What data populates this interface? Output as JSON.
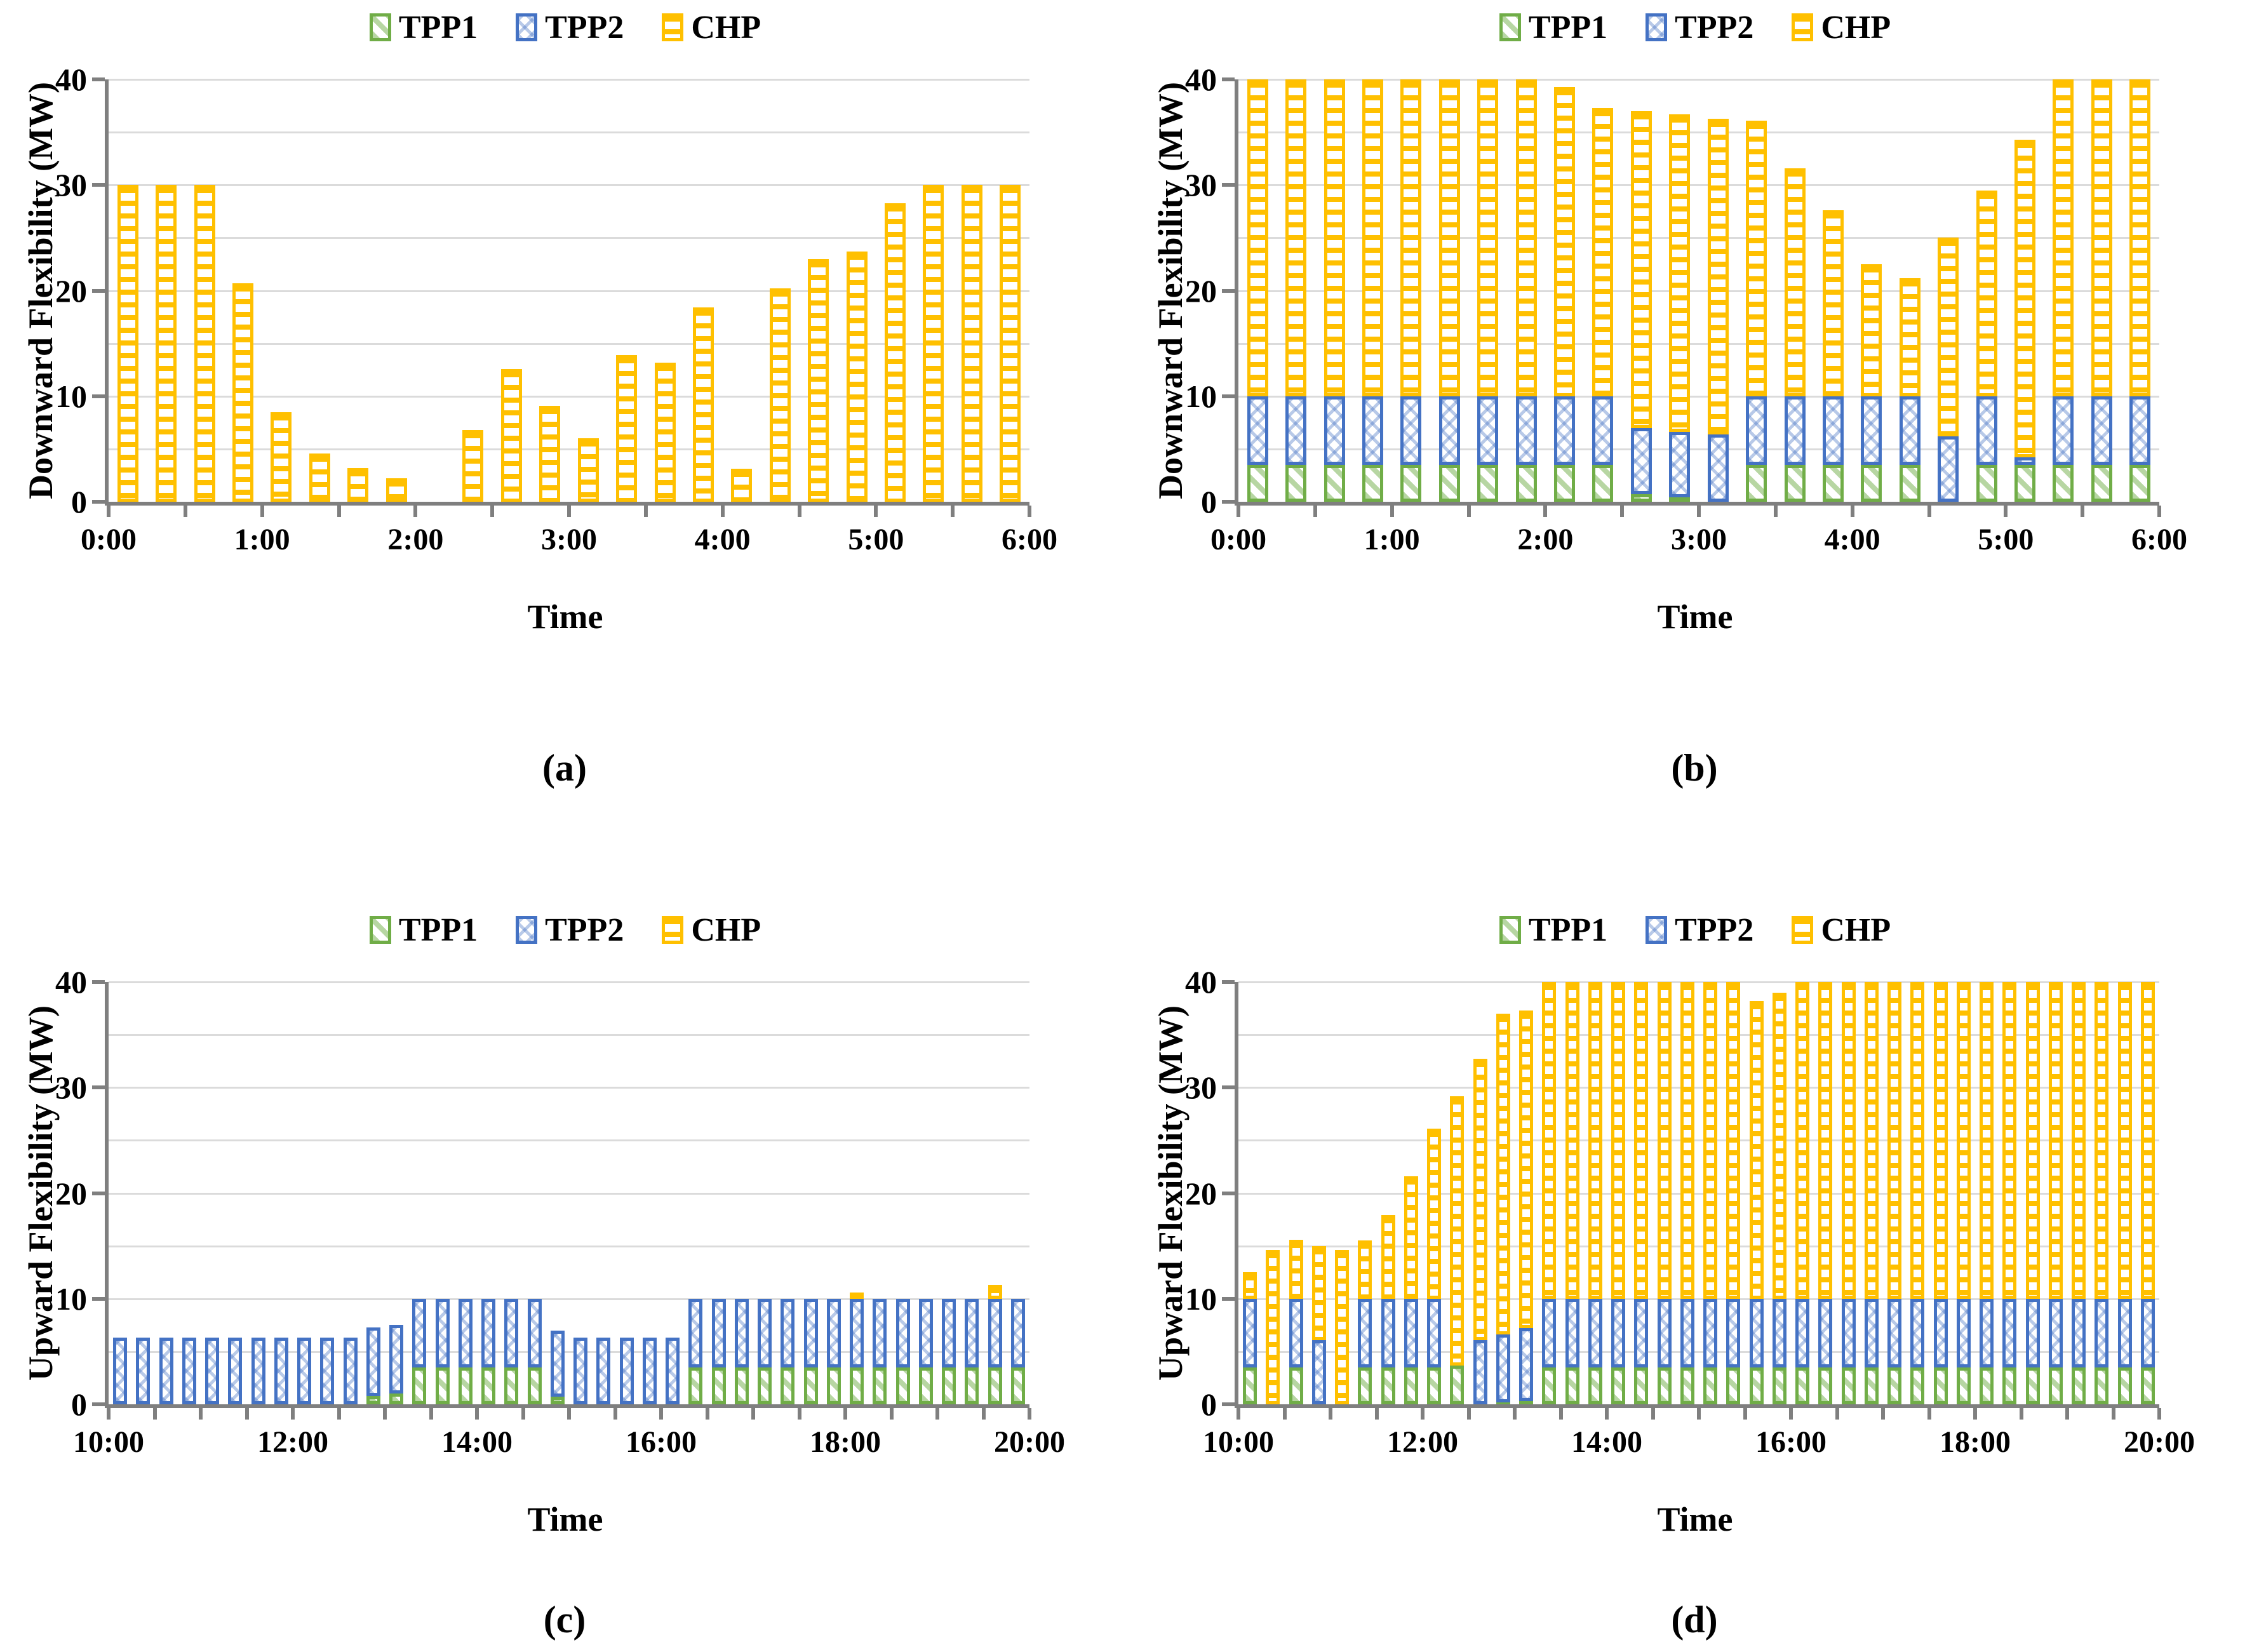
{
  "page": {
    "background": "#ffffff"
  },
  "colors": {
    "tpp1": "#70AD47",
    "tpp2": "#4472C4",
    "chp": "#FFC000",
    "axis": "#7F7F7F",
    "gridline": "#DBDBDB",
    "text": "#000000"
  },
  "chart_data": [
    {
      "id": "a",
      "caption": "(a)",
      "type": "bar",
      "stacked": true,
      "ylabel": "Downward Flexibility (MW)",
      "xlabel": "Time",
      "ylim": [
        0,
        40
      ],
      "ytick_labels": [
        "0",
        "10",
        "20",
        "30",
        "40"
      ],
      "ytick_values": [
        0,
        10,
        20,
        30,
        40
      ],
      "grid_interval": 5,
      "x_start": "0:00",
      "x_end": "6:00",
      "slot_minutes": 15,
      "x_labels": [
        "0:00",
        "1:00",
        "2:00",
        "3:00",
        "4:00",
        "5:00",
        "6:00"
      ],
      "slots_per_label": 4,
      "minor_tick_every_slots": 2,
      "legend": [
        "TPP1",
        "TPP2",
        "CHP"
      ],
      "series": [
        {
          "name": "TPP1",
          "values": [
            0,
            0,
            0,
            0,
            0,
            0,
            0,
            0,
            0,
            0,
            0,
            0,
            0,
            0,
            0,
            0,
            0,
            0,
            0,
            0,
            0,
            0,
            0,
            0
          ]
        },
        {
          "name": "TPP2",
          "values": [
            0,
            0,
            0,
            0,
            0,
            0,
            0,
            0,
            0,
            0,
            0,
            0,
            0,
            0,
            0,
            0,
            0,
            0,
            0,
            0,
            0,
            0,
            0,
            0
          ]
        },
        {
          "name": "CHP",
          "values": [
            30,
            30,
            30,
            20.7,
            8.5,
            4.6,
            3.2,
            2.2,
            0,
            6.8,
            12.6,
            9.1,
            6,
            13.9,
            13.2,
            18.4,
            3.1,
            20.2,
            23,
            23.7,
            28.3,
            30,
            30,
            30
          ]
        }
      ]
    },
    {
      "id": "b",
      "caption": "(b)",
      "type": "bar",
      "stacked": true,
      "ylabel": "Downward Flexibility (MW)",
      "xlabel": "Time",
      "ylim": [
        0,
        40
      ],
      "ytick_labels": [
        "0",
        "10",
        "20",
        "30",
        "40"
      ],
      "ytick_values": [
        0,
        10,
        20,
        30,
        40
      ],
      "grid_interval": 5,
      "x_start": "0:00",
      "x_end": "6:00",
      "slot_minutes": 15,
      "x_labels": [
        "0:00",
        "1:00",
        "2:00",
        "3:00",
        "4:00",
        "5:00",
        "6:00"
      ],
      "slots_per_label": 4,
      "minor_tick_every_slots": 2,
      "legend": [
        "TPP1",
        "TPP2",
        "CHP"
      ],
      "series": [
        {
          "name": "TPP1",
          "values": [
            3.5,
            3.5,
            3.5,
            3.5,
            3.5,
            3.5,
            3.5,
            3.5,
            3.5,
            3.5,
            0.7,
            0.4,
            0,
            3.5,
            3.5,
            3.5,
            3.5,
            3.5,
            0,
            3.5,
            3.5,
            3.5,
            3.5,
            3.5
          ]
        },
        {
          "name": "TPP2",
          "values": [
            6.5,
            6.5,
            6.5,
            6.5,
            6.5,
            6.5,
            6.5,
            6.5,
            6.5,
            6.5,
            6.3,
            6.2,
            6.4,
            6.5,
            6.5,
            6.5,
            6.5,
            6.5,
            6.2,
            6.5,
            0.7,
            6.5,
            6.5,
            6.5
          ]
        },
        {
          "name": "CHP",
          "values": [
            30,
            30,
            30,
            30,
            30,
            30,
            30,
            30,
            29.3,
            27.3,
            30,
            30.1,
            29.9,
            26.1,
            21.6,
            17.6,
            12.5,
            11.2,
            18.8,
            19.5,
            30.1,
            30,
            30,
            30
          ]
        }
      ]
    },
    {
      "id": "c",
      "caption": "(c)",
      "type": "bar",
      "stacked": true,
      "ylabel": "Upward Flexibility (MW)",
      "xlabel": "Time",
      "ylim": [
        0,
        40
      ],
      "ytick_labels": [
        "0",
        "10",
        "20",
        "30",
        "40"
      ],
      "ytick_values": [
        0,
        10,
        20,
        30,
        40
      ],
      "grid_interval": 5,
      "x_start": "10:00",
      "x_end": "20:00",
      "slot_minutes": 15,
      "x_labels": [
        "10:00",
        "12:00",
        "14:00",
        "16:00",
        "18:00",
        "20:00"
      ],
      "slots_per_label": 8,
      "minor_tick_every_slots": 2,
      "legend": [
        "TPP1",
        "TPP2",
        "CHP"
      ],
      "series": [
        {
          "name": "TPP1",
          "values": [
            0,
            0,
            0,
            0,
            0,
            0,
            0,
            0,
            0,
            0,
            0,
            0.8,
            1,
            3.5,
            3.5,
            3.5,
            3.5,
            3.5,
            3.5,
            0.7,
            0,
            0,
            0,
            0,
            0,
            3.5,
            3.5,
            3.5,
            3.5,
            3.5,
            3.5,
            3.5,
            3.5,
            3.5,
            3.5,
            3.5,
            3.5,
            3.5,
            3.5,
            3.5
          ]
        },
        {
          "name": "TPP2",
          "values": [
            6.3,
            6.3,
            6.3,
            6.3,
            6.3,
            6.3,
            6.3,
            6.3,
            6.3,
            6.3,
            6.3,
            6.5,
            6.5,
            6.5,
            6.5,
            6.5,
            6.5,
            6.5,
            6.5,
            6.3,
            6.3,
            6.3,
            6.3,
            6.3,
            6.3,
            6.5,
            6.5,
            6.5,
            6.5,
            6.5,
            6.5,
            6.5,
            6.5,
            6.5,
            6.5,
            6.5,
            6.5,
            6.5,
            6.5,
            6.5
          ]
        },
        {
          "name": "CHP",
          "values": [
            0,
            0,
            0,
            0,
            0,
            0,
            0,
            0,
            0,
            0,
            0,
            0,
            0,
            0,
            0,
            0,
            0,
            0,
            0,
            0,
            0,
            0,
            0,
            0,
            0,
            0,
            0,
            0,
            0,
            0,
            0,
            0,
            0.3,
            0,
            0,
            0,
            0,
            0,
            1.3,
            0
          ]
        }
      ]
    },
    {
      "id": "d",
      "caption": "(d)",
      "type": "bar",
      "stacked": true,
      "ylabel": "Upward Flexibility (MW)",
      "xlabel": "Time",
      "ylim": [
        0,
        40
      ],
      "ytick_labels": [
        "0",
        "10",
        "20",
        "30",
        "40"
      ],
      "ytick_values": [
        0,
        10,
        20,
        30,
        40
      ],
      "grid_interval": 5,
      "x_start": "10:00",
      "x_end": "20:00",
      "slot_minutes": 15,
      "x_labels": [
        "10:00",
        "12:00",
        "14:00",
        "16:00",
        "18:00",
        "20:00"
      ],
      "slots_per_label": 8,
      "minor_tick_every_slots": 2,
      "legend": [
        "TPP1",
        "TPP2",
        "CHP"
      ],
      "series": [
        {
          "name": "TPP1",
          "values": [
            3.5,
            0,
            3.5,
            0,
            0,
            3.5,
            3.5,
            3.5,
            3.5,
            3.7,
            0,
            0.2,
            0.3,
            3.5,
            3.5,
            3.5,
            3.5,
            3.5,
            3.5,
            3.5,
            3.5,
            3.5,
            3.5,
            3.5,
            3.5,
            3.5,
            3.5,
            3.5,
            3.5,
            3.5,
            3.5,
            3.5,
            3.5,
            3.5,
            3.5,
            3.5,
            3.5,
            3.5,
            3.5,
            3.5
          ]
        },
        {
          "name": "TPP2",
          "values": [
            6.5,
            0,
            6.5,
            6.1,
            0,
            6.5,
            6.5,
            6.5,
            6.5,
            0,
            6.1,
            6.4,
            6.9,
            6.5,
            6.5,
            6.5,
            6.5,
            6.5,
            6.5,
            6.5,
            6.5,
            6.5,
            6.5,
            6.5,
            6.5,
            6.5,
            6.5,
            6.5,
            6.5,
            6.5,
            6.5,
            6.5,
            6.5,
            6.5,
            6.5,
            6.5,
            6.5,
            6.5,
            6.5,
            6.5
          ]
        },
        {
          "name": "CHP",
          "values": [
            2.5,
            14.6,
            5.6,
            8.9,
            14.6,
            5.5,
            7.9,
            11.6,
            16.1,
            25.5,
            26.6,
            30.4,
            30.1,
            30,
            30,
            30,
            30,
            30,
            30,
            30,
            30,
            30,
            28.2,
            29,
            30,
            30,
            30,
            30,
            30,
            30,
            30,
            30,
            30,
            30,
            30,
            30,
            30,
            30,
            30,
            30
          ]
        }
      ]
    }
  ]
}
